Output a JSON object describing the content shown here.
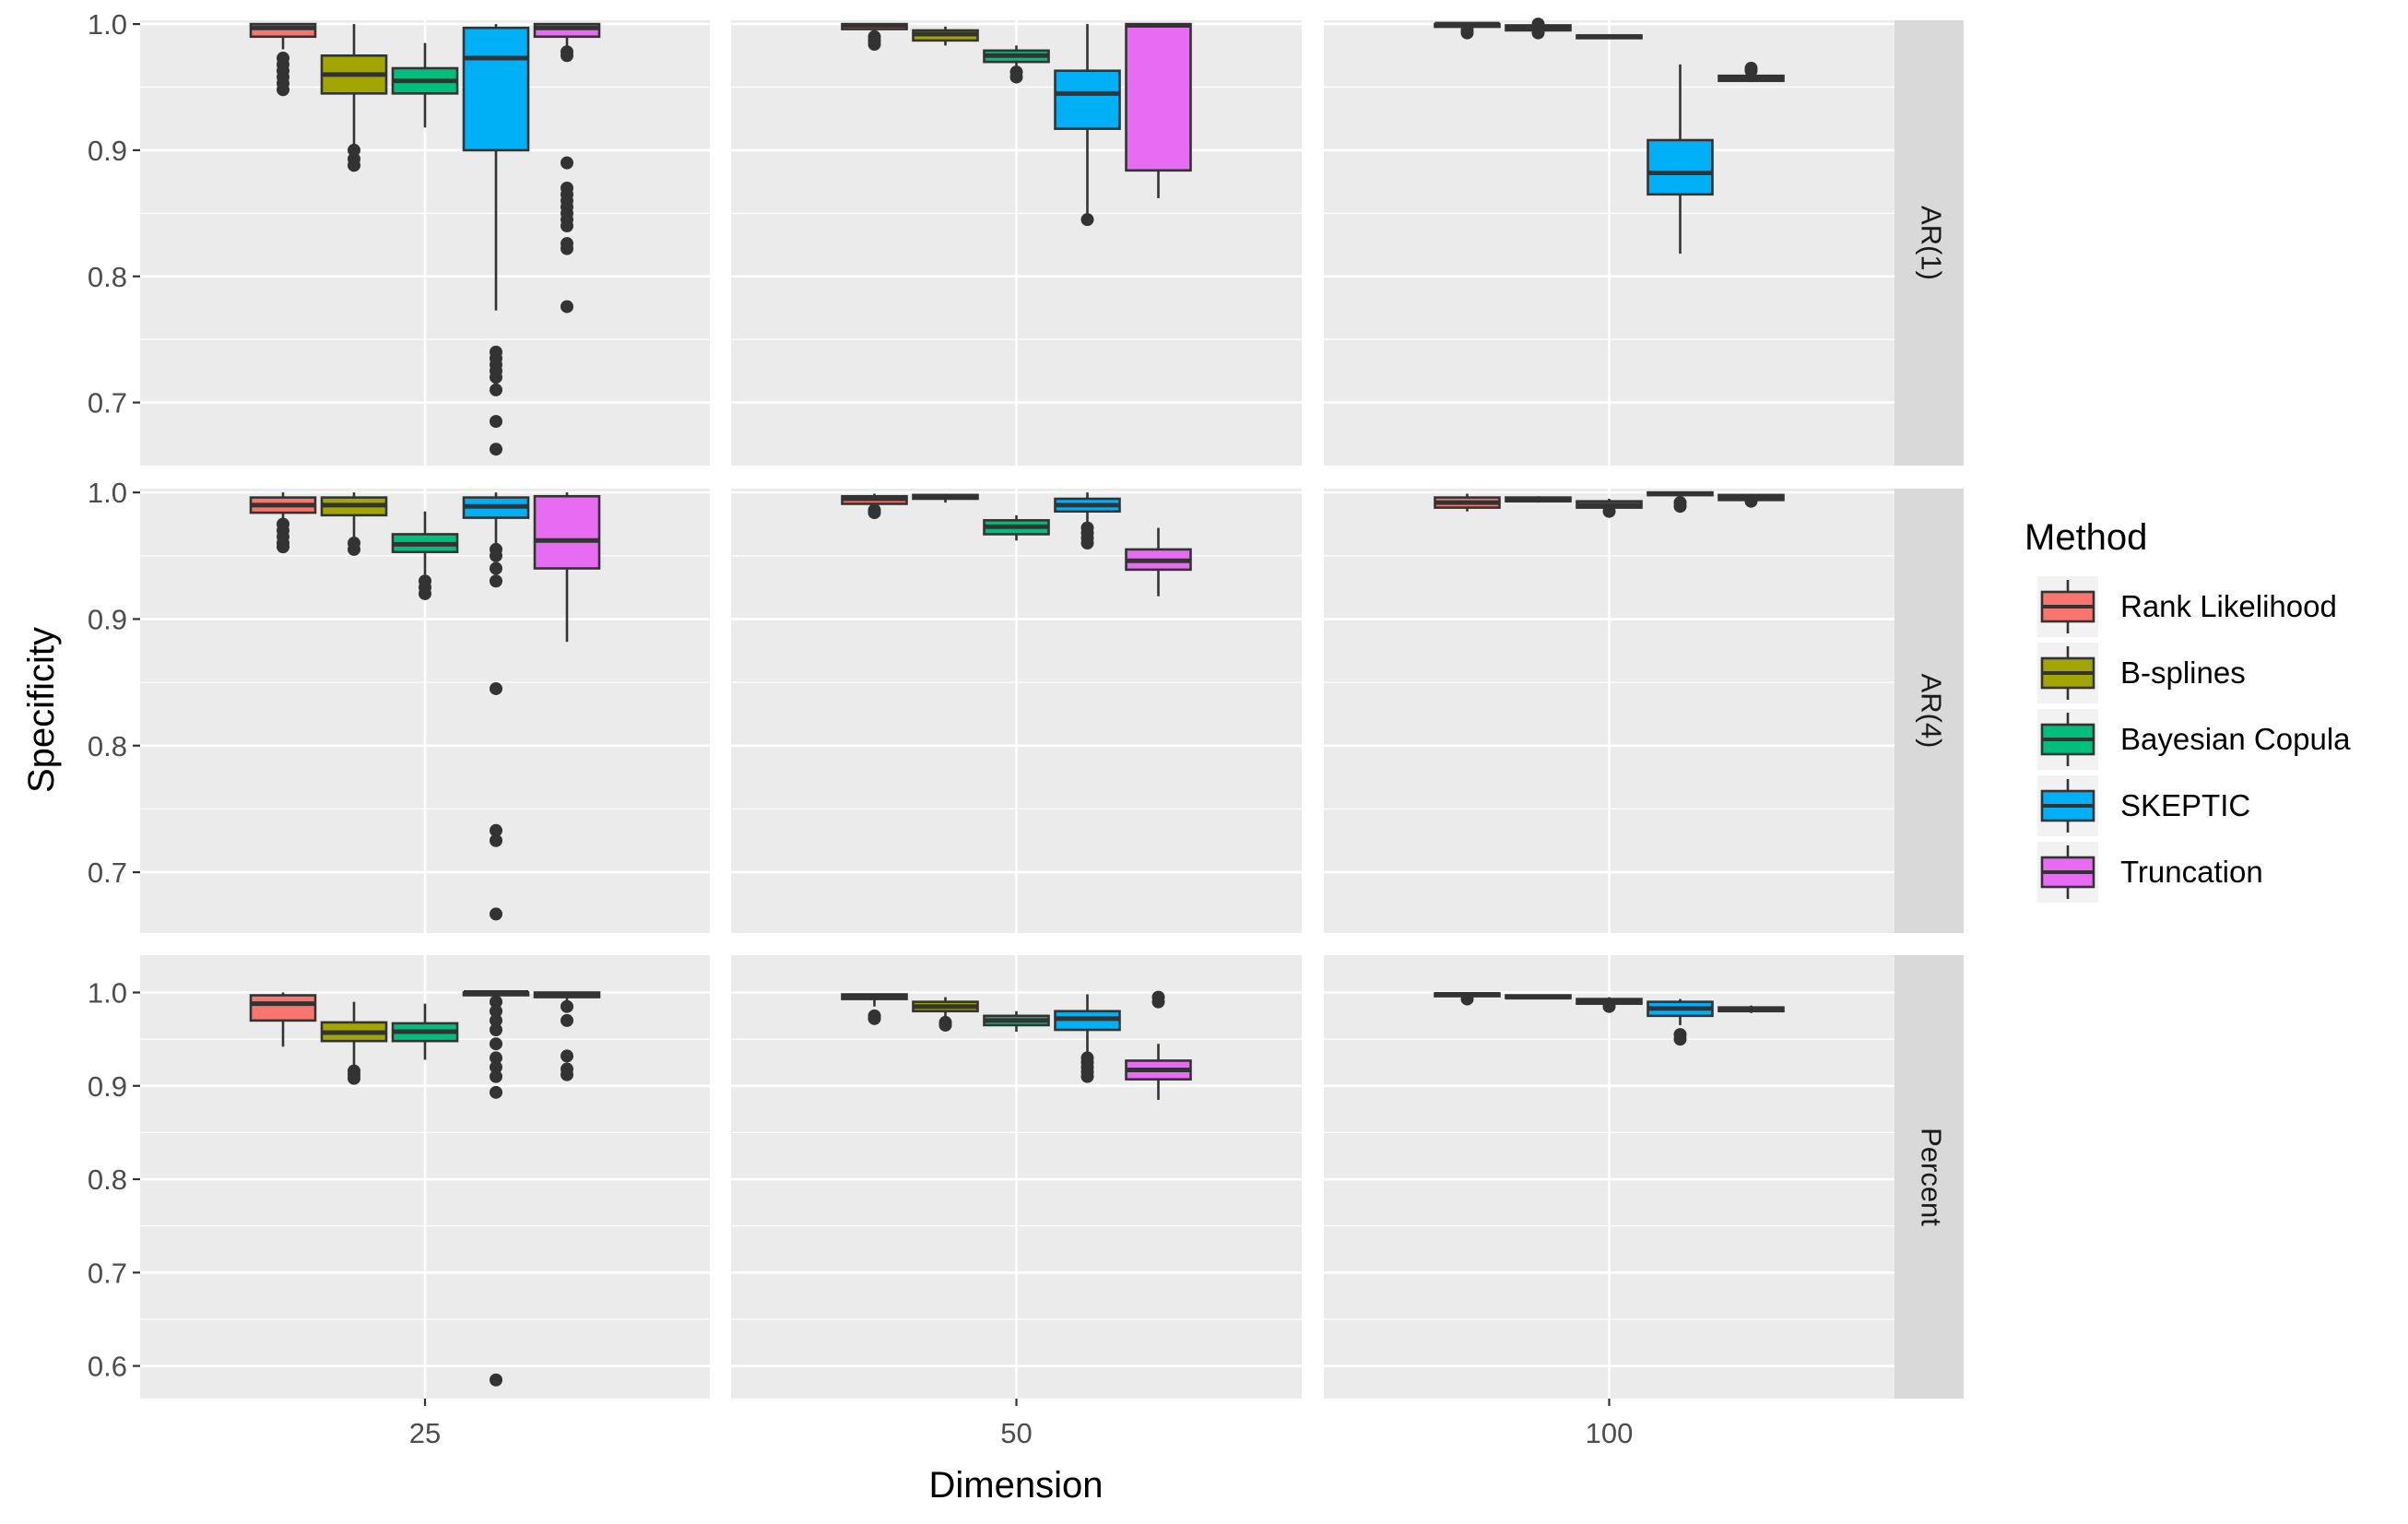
{
  "chart_data": {
    "type": "boxplot",
    "xlabel": "Dimension",
    "ylabel": "Specificity",
    "columns": [
      "25",
      "50",
      "100"
    ],
    "rows": [
      "AR(1)",
      "AR(4)",
      "Percent"
    ],
    "legend": {
      "title": "Method",
      "position": "right",
      "items": [
        {
          "name": "Rank Likelihood",
          "color": "#F8766D"
        },
        {
          "name": "B-splines",
          "color": "#A3A500"
        },
        {
          "name": "Bayesian Copula",
          "color": "#00BF7D"
        },
        {
          "name": "SKEPTIC",
          "color": "#00B0F6"
        },
        {
          "name": "Truncation",
          "color": "#E76BF3"
        }
      ]
    },
    "grid": true,
    "panels": [
      {
        "row": "AR(1)",
        "ylim": [
          0.65,
          1.003
        ],
        "yticks": [
          "0.7",
          "0.8",
          "0.9",
          "1.0"
        ],
        "groups": [
          {
            "dim": "25",
            "boxes": [
              {
                "method": "Rank Likelihood",
                "q1": 0.99,
                "median": 0.997,
                "q3": 1.0,
                "lower": 0.98,
                "upper": 1.0,
                "outliers": [
                  0.973,
                  0.968,
                  0.963,
                  0.958,
                  0.953,
                  0.948
                ]
              },
              {
                "method": "B-splines",
                "q1": 0.945,
                "median": 0.96,
                "q3": 0.975,
                "lower": 0.905,
                "upper": 1.0,
                "outliers": [
                  0.9,
                  0.893,
                  0.888
                ]
              },
              {
                "method": "Bayesian Copula",
                "q1": 0.945,
                "median": 0.955,
                "q3": 0.965,
                "lower": 0.918,
                "upper": 0.985,
                "outliers": []
              },
              {
                "method": "SKEPTIC",
                "q1": 0.9,
                "median": 0.973,
                "q3": 0.997,
                "lower": 0.773,
                "upper": 1.0,
                "outliers": [
                  0.74,
                  0.735,
                  0.73,
                  0.725,
                  0.72,
                  0.71,
                  0.685,
                  0.663
                ]
              },
              {
                "method": "Truncation",
                "q1": 0.99,
                "median": 0.997,
                "q3": 1.0,
                "lower": 0.982,
                "upper": 1.0,
                "outliers": [
                  0.978,
                  0.975,
                  0.89,
                  0.87,
                  0.865,
                  0.86,
                  0.855,
                  0.85,
                  0.845,
                  0.84,
                  0.826,
                  0.822,
                  0.776
                ]
              }
            ]
          },
          {
            "dim": "50",
            "boxes": [
              {
                "method": "Rank Likelihood",
                "q1": 0.996,
                "median": 0.999,
                "q3": 1.0,
                "lower": 0.993,
                "upper": 1.0,
                "outliers": [
                  0.99,
                  0.987,
                  0.984
                ]
              },
              {
                "method": "B-splines",
                "q1": 0.987,
                "median": 0.992,
                "q3": 0.995,
                "lower": 0.983,
                "upper": 0.998,
                "outliers": []
              },
              {
                "method": "Bayesian Copula",
                "q1": 0.97,
                "median": 0.975,
                "q3": 0.979,
                "lower": 0.965,
                "upper": 0.983,
                "outliers": [
                  0.962,
                  0.958
                ]
              },
              {
                "method": "SKEPTIC",
                "q1": 0.917,
                "median": 0.945,
                "q3": 0.963,
                "lower": 0.85,
                "upper": 1.0,
                "outliers": [
                  0.845
                ]
              },
              {
                "method": "Truncation",
                "q1": 0.884,
                "median": 0.999,
                "q3": 1.0,
                "lower": 0.862,
                "upper": 1.0,
                "outliers": []
              }
            ]
          },
          {
            "dim": "100",
            "boxes": [
              {
                "method": "Rank Likelihood",
                "q1": 0.998,
                "median": 1.0,
                "q3": 1.0,
                "lower": 0.997,
                "upper": 1.0,
                "outliers": [
                  0.995,
                  0.993
                ]
              },
              {
                "method": "B-splines",
                "q1": 0.995,
                "median": 0.997,
                "q3": 0.999,
                "lower": 0.993,
                "upper": 1.0,
                "outliers": [
                  1.0,
                  0.993
                ]
              },
              {
                "method": "Bayesian Copula",
                "q1": 0.989,
                "median": 0.99,
                "q3": 0.991,
                "lower": 0.988,
                "upper": 0.992,
                "outliers": []
              },
              {
                "method": "SKEPTIC",
                "q1": 0.865,
                "median": 0.882,
                "q3": 0.908,
                "lower": 0.818,
                "upper": 0.968,
                "outliers": []
              },
              {
                "method": "Truncation",
                "q1": 0.955,
                "median": 0.957,
                "q3": 0.959,
                "lower": 0.954,
                "upper": 0.961,
                "outliers": [
                  0.963,
                  0.965
                ]
              }
            ]
          }
        ]
      },
      {
        "row": "AR(4)",
        "ylim": [
          0.652,
          1.003
        ],
        "yticks": [
          "0.7",
          "0.8",
          "0.9",
          "1.0"
        ],
        "groups": [
          {
            "dim": "25",
            "boxes": [
              {
                "method": "Rank Likelihood",
                "q1": 0.984,
                "median": 0.99,
                "q3": 0.996,
                "lower": 0.978,
                "upper": 1.0,
                "outliers": [
                  0.975,
                  0.97,
                  0.965,
                  0.96,
                  0.957
                ]
              },
              {
                "method": "B-splines",
                "q1": 0.982,
                "median": 0.99,
                "q3": 0.996,
                "lower": 0.965,
                "upper": 1.0,
                "outliers": [
                  0.96,
                  0.955
                ]
              },
              {
                "method": "Bayesian Copula",
                "q1": 0.953,
                "median": 0.959,
                "q3": 0.967,
                "lower": 0.935,
                "upper": 0.985,
                "outliers": [
                  0.93,
                  0.925,
                  0.92
                ]
              },
              {
                "method": "SKEPTIC",
                "q1": 0.98,
                "median": 0.989,
                "q3": 0.996,
                "lower": 0.958,
                "upper": 1.0,
                "outliers": [
                  0.955,
                  0.95,
                  0.94,
                  0.93,
                  0.845,
                  0.733,
                  0.725,
                  0.667
                ]
              },
              {
                "method": "Truncation",
                "q1": 0.94,
                "median": 0.962,
                "q3": 0.997,
                "lower": 0.882,
                "upper": 1.0,
                "outliers": []
              }
            ]
          },
          {
            "dim": "50",
            "boxes": [
              {
                "method": "Rank Likelihood",
                "q1": 0.991,
                "median": 0.995,
                "q3": 0.997,
                "lower": 0.988,
                "upper": 0.999,
                "outliers": [
                  0.986,
                  0.984
                ]
              },
              {
                "method": "B-splines",
                "q1": 0.995,
                "median": 0.997,
                "q3": 0.998,
                "lower": 0.992,
                "upper": 0.999,
                "outliers": []
              },
              {
                "method": "Bayesian Copula",
                "q1": 0.967,
                "median": 0.973,
                "q3": 0.978,
                "lower": 0.962,
                "upper": 0.982,
                "outliers": []
              },
              {
                "method": "SKEPTIC",
                "q1": 0.985,
                "median": 0.99,
                "q3": 0.995,
                "lower": 0.975,
                "upper": 1.0,
                "outliers": [
                  0.972,
                  0.968,
                  0.964,
                  0.96
                ]
              },
              {
                "method": "Truncation",
                "q1": 0.939,
                "median": 0.946,
                "q3": 0.955,
                "lower": 0.918,
                "upper": 0.972,
                "outliers": []
              }
            ]
          },
          {
            "dim": "100",
            "boxes": [
              {
                "method": "Rank Likelihood",
                "q1": 0.988,
                "median": 0.992,
                "q3": 0.996,
                "lower": 0.985,
                "upper": 0.999,
                "outliers": []
              },
              {
                "method": "B-splines",
                "q1": 0.993,
                "median": 0.995,
                "q3": 0.996,
                "lower": 0.992,
                "upper": 0.997,
                "outliers": []
              },
              {
                "method": "Bayesian Copula",
                "q1": 0.988,
                "median": 0.99,
                "q3": 0.993,
                "lower": 0.986,
                "upper": 0.995,
                "outliers": [
                  0.985
                ]
              },
              {
                "method": "SKEPTIC",
                "q1": 0.998,
                "median": 0.999,
                "q3": 1.0,
                "lower": 0.996,
                "upper": 1.0,
                "outliers": [
                  0.992,
                  0.989
                ]
              },
              {
                "method": "Truncation",
                "q1": 0.994,
                "median": 0.996,
                "q3": 0.998,
                "lower": 0.992,
                "upper": 0.999,
                "outliers": [
                  0.993
                ]
              }
            ]
          }
        ]
      },
      {
        "row": "Percent",
        "ylim": [
          0.565,
          1.04
        ],
        "yticks": [
          "0.6",
          "0.7",
          "0.8",
          "0.9",
          "1.0"
        ],
        "groups": [
          {
            "dim": "25",
            "boxes": [
              {
                "method": "Rank Likelihood",
                "q1": 0.97,
                "median": 0.988,
                "q3": 0.997,
                "lower": 0.942,
                "upper": 1.0,
                "outliers": []
              },
              {
                "method": "B-splines",
                "q1": 0.948,
                "median": 0.957,
                "q3": 0.968,
                "lower": 0.92,
                "upper": 0.99,
                "outliers": [
                  0.916,
                  0.912,
                  0.908
                ]
              },
              {
                "method": "Bayesian Copula",
                "q1": 0.948,
                "median": 0.958,
                "q3": 0.967,
                "lower": 0.928,
                "upper": 0.988,
                "outliers": []
              },
              {
                "method": "SKEPTIC",
                "q1": 0.999,
                "median": 1.0,
                "q3": 1.0,
                "lower": 0.997,
                "upper": 1.0,
                "outliers": [
                  0.99,
                  0.98,
                  0.97,
                  0.96,
                  0.945,
                  0.93,
                  0.92,
                  0.91,
                  0.893,
                  0.585
                ]
              },
              {
                "method": "Truncation",
                "q1": 0.995,
                "median": 0.998,
                "q3": 1.0,
                "lower": 0.99,
                "upper": 1.0,
                "outliers": [
                  0.985,
                  0.97,
                  0.932,
                  0.918,
                  0.912
                ]
              }
            ]
          },
          {
            "dim": "50",
            "boxes": [
              {
                "method": "Rank Likelihood",
                "q1": 0.993,
                "median": 0.996,
                "q3": 0.998,
                "lower": 0.985,
                "upper": 0.999,
                "outliers": [
                  0.975,
                  0.972
                ]
              },
              {
                "method": "B-splines",
                "q1": 0.98,
                "median": 0.985,
                "q3": 0.99,
                "lower": 0.972,
                "upper": 0.995,
                "outliers": [
                  0.968,
                  0.965
                ]
              },
              {
                "method": "Bayesian Copula",
                "q1": 0.965,
                "median": 0.97,
                "q3": 0.975,
                "lower": 0.958,
                "upper": 0.98,
                "outliers": []
              },
              {
                "method": "SKEPTIC",
                "q1": 0.96,
                "median": 0.972,
                "q3": 0.98,
                "lower": 0.935,
                "upper": 0.998,
                "outliers": [
                  0.93,
                  0.925,
                  0.92,
                  0.915,
                  0.91
                ]
              },
              {
                "method": "Truncation",
                "q1": 0.907,
                "median": 0.917,
                "q3": 0.927,
                "lower": 0.885,
                "upper": 0.945,
                "outliers": [
                  0.99,
                  0.995
                ]
              }
            ]
          },
          {
            "dim": "100",
            "boxes": [
              {
                "method": "Rank Likelihood",
                "q1": 0.996,
                "median": 0.998,
                "q3": 0.999,
                "lower": 0.994,
                "upper": 1.0,
                "outliers": [
                  0.993
                ]
              },
              {
                "method": "B-splines",
                "q1": 0.994,
                "median": 0.995,
                "q3": 0.997,
                "lower": 0.993,
                "upper": 0.998,
                "outliers": []
              },
              {
                "method": "Bayesian Copula",
                "q1": 0.988,
                "median": 0.99,
                "q3": 0.993,
                "lower": 0.985,
                "upper": 0.995,
                "outliers": [
                  0.985
                ]
              },
              {
                "method": "SKEPTIC",
                "q1": 0.975,
                "median": 0.983,
                "q3": 0.99,
                "lower": 0.965,
                "upper": 0.993,
                "outliers": [
                  0.955,
                  0.95
                ]
              },
              {
                "method": "Truncation",
                "q1": 0.98,
                "median": 0.982,
                "q3": 0.984,
                "lower": 0.978,
                "upper": 0.986,
                "outliers": []
              }
            ]
          }
        ]
      }
    ]
  }
}
